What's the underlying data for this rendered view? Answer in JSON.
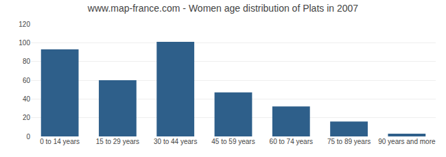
{
  "chart_data": {
    "type": "bar",
    "title": "www.map-france.com - Women age distribution of Plats in 2007",
    "categories": [
      "0 to 14 years",
      "15 to 29 years",
      "30 to 44 years",
      "45 to 59 years",
      "60 to 74 years",
      "75 to 89 years",
      "90 years and more"
    ],
    "values": [
      93,
      60,
      101,
      47,
      32,
      16,
      3
    ],
    "color": "#2e5f8a",
    "ylim": [
      0,
      120
    ],
    "yticks": [
      0,
      20,
      40,
      60,
      80,
      100,
      120
    ],
    "grid": true
  }
}
